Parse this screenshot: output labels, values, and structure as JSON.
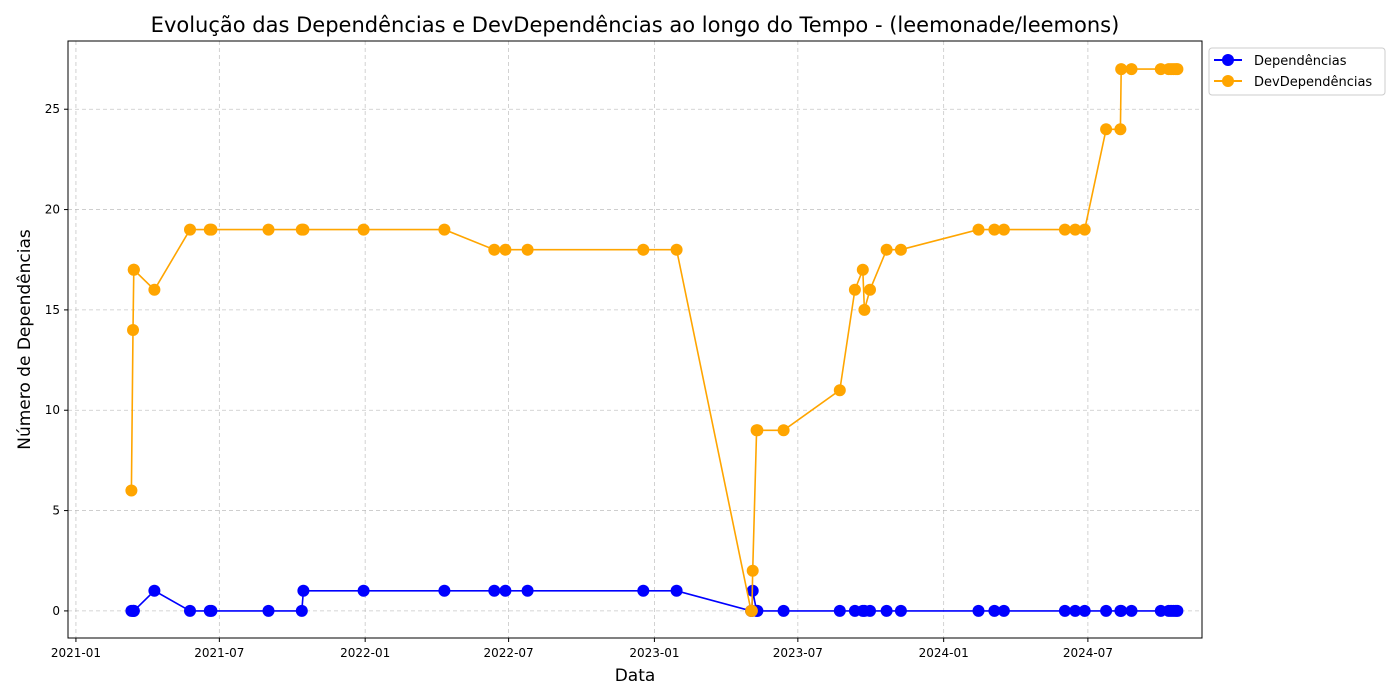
{
  "chart_data": {
    "type": "line",
    "title": "Evolução das Dependências e DevDependências ao longo do Tempo - (leemonade/leemons)",
    "xlabel": "Data",
    "ylabel": "Número de Dependências",
    "xlim": [
      "2020-12-22",
      "2024-11-22"
    ],
    "ylim": [
      -1.35,
      28.4
    ],
    "x_ticks": [
      "2021-01-01",
      "2021-07-01",
      "2022-01-01",
      "2022-07-01",
      "2023-01-01",
      "2023-07-01",
      "2024-01-01",
      "2024-07-01"
    ],
    "x_tick_labels": [
      "2021-01",
      "2021-07",
      "2022-01",
      "2022-07",
      "2023-01",
      "2023-07",
      "2024-01",
      "2024-07"
    ],
    "y_ticks": [
      0,
      5,
      10,
      15,
      20,
      25
    ],
    "y_tick_labels": [
      "0",
      "5",
      "10",
      "15",
      "20",
      "25"
    ],
    "grid": true,
    "legend_position": "outside-top-right",
    "x": [
      "2021-03-12",
      "2021-03-14",
      "2021-03-15",
      "2021-03-15",
      "2021-04-10",
      "2021-05-25",
      "2021-06-19",
      "2021-06-21",
      "2021-09-01",
      "2021-10-13",
      "2021-10-15",
      "2021-12-30",
      "2022-04-11",
      "2022-06-13",
      "2022-06-27",
      "2022-07-25",
      "2022-12-18",
      "2023-01-29",
      "2023-05-03",
      "2023-05-04",
      "2023-05-05",
      "2023-05-10",
      "2023-05-11",
      "2023-06-13",
      "2023-08-23",
      "2023-09-11",
      "2023-09-21",
      "2023-09-23",
      "2023-09-30",
      "2023-10-21",
      "2023-11-08",
      "2024-02-14",
      "2024-03-05",
      "2024-03-17",
      "2024-06-02",
      "2024-06-15",
      "2024-06-27",
      "2024-07-24",
      "2024-08-11",
      "2024-08-12",
      "2024-08-25",
      "2024-10-01",
      "2024-10-11",
      "2024-10-14",
      "2024-10-17",
      "2024-10-20",
      "2024-10-22"
    ],
    "series": [
      {
        "name": "Dependências",
        "color": "#0000ff",
        "values": [
          0,
          0,
          0,
          0,
          1,
          0,
          0,
          0,
          0,
          0,
          1,
          1,
          1,
          1,
          1,
          1,
          1,
          1,
          0,
          0,
          1,
          0,
          0,
          0,
          0,
          0,
          0,
          0,
          0,
          0,
          0,
          0,
          0,
          0,
          0,
          0,
          0,
          0,
          0,
          0,
          0,
          0,
          0,
          0,
          0,
          0,
          0
        ]
      },
      {
        "name": "DevDependências",
        "color": "#ffa500",
        "values": [
          6,
          14,
          17,
          17,
          16,
          19,
          19,
          19,
          19,
          19,
          19,
          19,
          19,
          18,
          18,
          18,
          18,
          18,
          0,
          0,
          2,
          9,
          9,
          9,
          11,
          16,
          17,
          15,
          16,
          18,
          18,
          19,
          19,
          19,
          19,
          19,
          19,
          24,
          24,
          27,
          27,
          27,
          27,
          27,
          27,
          27,
          27
        ]
      }
    ]
  }
}
